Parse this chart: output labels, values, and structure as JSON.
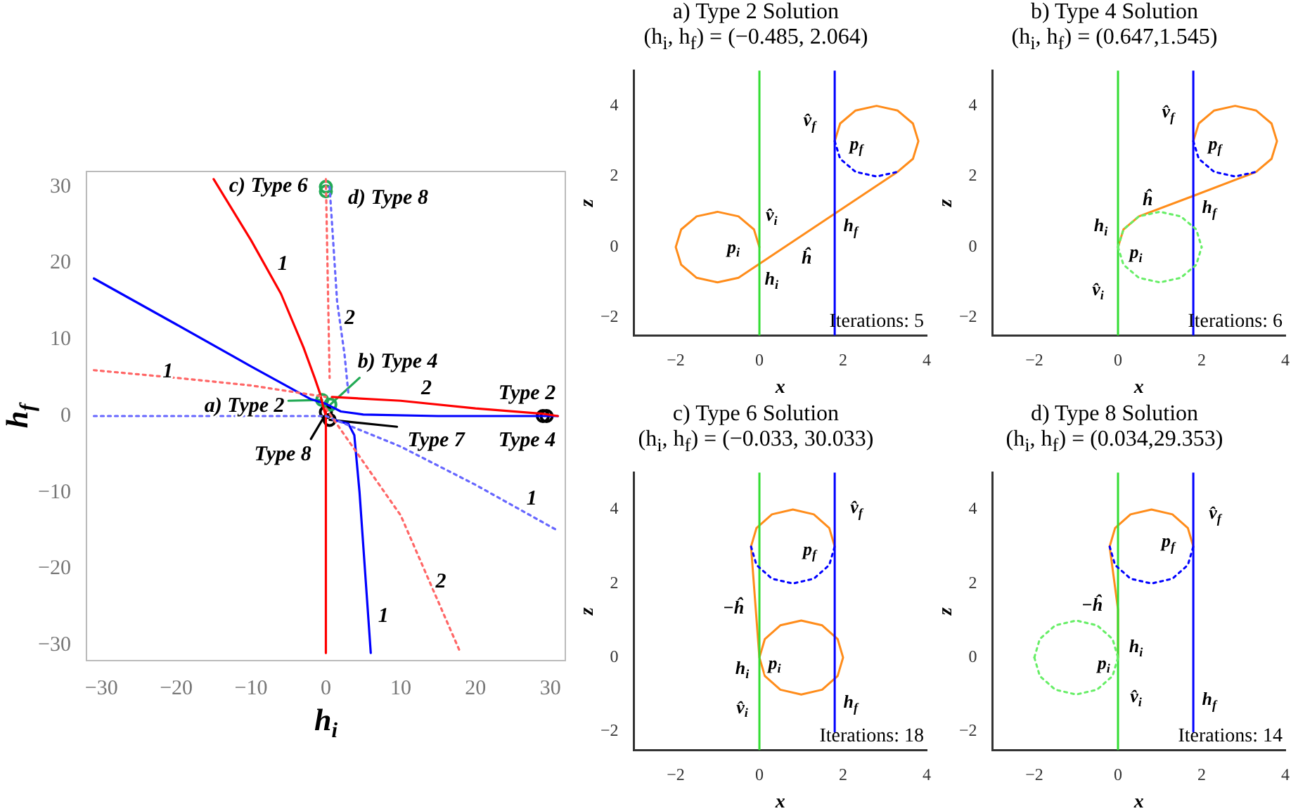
{
  "chart_data": [
    {
      "type": "line",
      "xlabel": "h$_{i}$",
      "ylabel": "h$_{f}$",
      "xlim": [
        -32,
        32
      ],
      "ylim": [
        -32,
        32
      ],
      "xticks": [
        -30,
        -20,
        -10,
        0,
        10,
        20,
        30
      ],
      "yticks": [
        -30,
        -20,
        -10,
        0,
        10,
        20,
        30
      ],
      "grid": false,
      "legend": false,
      "series": [
        {
          "color": "#ff0000",
          "line_style": "solid",
          "x": [
            -15,
            -10,
            -6,
            -3,
            -1.5,
            -0.8,
            -0.3,
            0
          ],
          "values": [
            31,
            23,
            16,
            9,
            5,
            3,
            1,
            0
          ]
        },
        {
          "color": "#ff0000",
          "line_style": "solid",
          "x": [
            0,
            0
          ],
          "values": [
            1,
            -31
          ]
        },
        {
          "color": "#ff0000",
          "line_style": "solid",
          "x": [
            0.8,
            10,
            20,
            29,
            31
          ],
          "values": [
            2.5,
            2,
            1,
            0.3,
            0
          ]
        },
        {
          "color": "#0000ff",
          "line_style": "solid",
          "x": [
            -31,
            -20,
            -10,
            -2,
            0,
            2,
            5,
            15,
            31
          ],
          "values": [
            18,
            12,
            6.5,
            2.2,
            1.6,
            0.6,
            0.2,
            0,
            0
          ]
        },
        {
          "color": "#0000ff",
          "line_style": "solid",
          "x": [
            1,
            3,
            3.8,
            4.5,
            5.5,
            6
          ],
          "values": [
            -0.5,
            -1,
            -2.5,
            -10,
            -24,
            -31
          ]
        },
        {
          "color": "#ff6666",
          "line_style": "dotted",
          "x": [
            -31,
            -20,
            -10,
            0
          ],
          "values": [
            6,
            5,
            4,
            2.5
          ]
        },
        {
          "color": "#ff6666",
          "line_style": "dotted",
          "x": [
            0,
            5,
            10,
            14,
            18
          ],
          "values": [
            1,
            -6,
            -13,
            -22,
            -31
          ]
        },
        {
          "color": "#ff6666",
          "line_style": "dotted",
          "x": [
            0,
            0.5
          ],
          "values": [
            31,
            5
          ]
        },
        {
          "color": "#6666ff",
          "line_style": "dotted",
          "x": [
            0,
            10,
            20,
            31
          ],
          "values": [
            0,
            -4,
            -9,
            -15
          ]
        },
        {
          "color": "#6666ff",
          "line_style": "dotted",
          "x": [
            -31,
            0
          ],
          "values": [
            0,
            0
          ]
        },
        {
          "color": "#6666ff",
          "line_style": "dotted",
          "x": [
            0.5,
            1.5,
            2.5,
            3
          ],
          "values": [
            30,
            15,
            8,
            3
          ]
        },
        {
          "color": "#22aa55",
          "line_style": "solid",
          "x": [
            -0.5,
            -5
          ],
          "values": [
            2.1,
            2
          ]
        },
        {
          "color": "#22aa55",
          "line_style": "solid",
          "x": [
            0.6,
            4.5
          ],
          "values": [
            1.5,
            5
          ]
        },
        {
          "color": "#000000",
          "line_style": "solid",
          "x": [
            0,
            -2
          ],
          "values": [
            0.3,
            -3
          ]
        },
        {
          "color": "#000000",
          "line_style": "solid",
          "x": [
            0.5,
            9.5
          ],
          "values": [
            -0.5,
            -1.4
          ]
        },
        {
          "type": "scatter",
          "color": "#22aa55",
          "marker": "circle",
          "x": [
            -0.5,
            0.6,
            0,
            0
          ],
          "values": [
            2.1,
            1.5,
            30,
            29.4
          ]
        },
        {
          "type": "scatter",
          "color": "#000000",
          "marker": "circle",
          "x": [
            0,
            0.5,
            29,
            29.5
          ],
          "values": [
            0.5,
            -0.5,
            0,
            0
          ]
        }
      ],
      "annotations": [
        "c) Type 6",
        "d) Type 8",
        "b) Type 4",
        "a) Type 2",
        "Type 2",
        "Type 4",
        "Type 7",
        "Type 8",
        "1",
        "1",
        "2",
        "2",
        "1",
        "2",
        "1"
      ]
    },
    {
      "type": "line",
      "title": "a) Type 2 Solution",
      "subtitle": "(h$_{i}$, h$_{f}$) = (−0.485, 2.064)",
      "xlabel": "x",
      "ylabel": "z",
      "xlim": [
        -3,
        4
      ],
      "ylim": [
        -2.5,
        5
      ],
      "xticks": [
        -2,
        0,
        2,
        4
      ],
      "yticks": [
        -2,
        0,
        2,
        4
      ],
      "grid": false,
      "legend": false,
      "series": [
        {
          "color": "#33dd33",
          "line_style": "solid",
          "x": [
            0,
            0
          ],
          "values": [
            -2.5,
            5
          ]
        },
        {
          "color": "#0000ff",
          "line_style": "solid",
          "x": [
            1.8,
            1.8
          ],
          "values": [
            -2.5,
            5
          ]
        },
        {
          "color": "#ff8c1a",
          "line_style": "solid",
          "x": [
            0,
            -0.13,
            -0.5,
            -1,
            -1.5,
            -1.87,
            -2,
            -1.87,
            -1.5,
            -1,
            -0.5,
            3.3,
            3.67,
            3.8,
            3.67,
            3.3,
            2.8,
            2.3,
            1.93,
            1.8
          ],
          "values": [
            0,
            0.5,
            0.87,
            1,
            0.87,
            0.5,
            0,
            -0.5,
            -0.87,
            -1,
            -0.87,
            2.13,
            2.5,
            3,
            3.5,
            3.87,
            4,
            3.87,
            3.5,
            3
          ]
        },
        {
          "color": "#0000ff",
          "line_style": "dotted",
          "x": [
            1.8,
            1.93,
            2.3,
            2.8,
            3.3
          ],
          "values": [
            3,
            2.5,
            2.13,
            2,
            2.13
          ]
        }
      ],
      "annotations": [
        "v̂$_{f}$",
        "p$_{f}$",
        "v̂$_{i}$",
        "p$_{i}$",
        "ĥ",
        "h$_{i}$",
        "h$_{f}$",
        "Iterations: 5"
      ]
    },
    {
      "type": "line",
      "title": "b) Type 4 Solution",
      "subtitle": "(h$_{i}$, h$_{f}$) = (0.647,1.545)",
      "xlabel": "x",
      "ylabel": "z",
      "xlim": [
        -3,
        4
      ],
      "ylim": [
        -2.5,
        5
      ],
      "xticks": [
        -2,
        0,
        2,
        4
      ],
      "yticks": [
        -2,
        0,
        2,
        4
      ],
      "grid": false,
      "legend": false,
      "series": [
        {
          "color": "#33dd33",
          "line_style": "solid",
          "x": [
            0,
            0
          ],
          "values": [
            -2.5,
            5
          ]
        },
        {
          "color": "#0000ff",
          "line_style": "solid",
          "x": [
            1.8,
            1.8
          ],
          "values": [
            -2.5,
            5
          ]
        },
        {
          "color": "#ff8c1a",
          "line_style": "solid",
          "x": [
            0,
            0.13,
            0.5,
            1.8,
            3.3,
            3.67,
            3.8,
            3.67,
            3.3,
            2.8,
            2.3,
            1.93,
            1.8
          ],
          "values": [
            0,
            0.5,
            0.87,
            1.45,
            2.13,
            2.5,
            3,
            3.5,
            3.87,
            4,
            3.87,
            3.5,
            3
          ]
        },
        {
          "color": "#0000ff",
          "line_style": "dotted",
          "x": [
            1.8,
            1.93,
            2.3,
            2.8,
            3.3
          ],
          "values": [
            3,
            2.5,
            2.13,
            2,
            2.13
          ]
        },
        {
          "color": "#66ee66",
          "line_style": "dotted",
          "x": [
            0,
            0.13,
            0.5,
            1,
            1.5,
            1.87,
            2
          ],
          "values": [
            0,
            0.5,
            0.87,
            1,
            0.87,
            0.5,
            0
          ]
        },
        {
          "color": "#66ee66",
          "line_style": "dotted",
          "x": [
            0,
            0.13,
            0.5,
            1,
            1.5,
            1.87,
            2
          ],
          "values": [
            0,
            -0.5,
            -0.87,
            -1,
            -0.87,
            -0.5,
            0
          ]
        }
      ],
      "annotations": [
        "v̂$_{f}$",
        "p$_{f}$",
        "h$_{i}$",
        "p$_{i}$",
        "ĥ",
        "v̂$_{i}$",
        "h$_{f}$",
        "Iterations: 6"
      ]
    },
    {
      "type": "line",
      "title": "c) Type 6 Solution",
      "subtitle": "(h$_{i}$, h$_{f}$) = (−0.033, 30.033)",
      "xlabel": "x",
      "ylabel": "z",
      "xlim": [
        -3,
        4
      ],
      "ylim": [
        -2.5,
        5
      ],
      "xticks": [
        -2,
        0,
        2,
        4
      ],
      "yticks": [
        -2,
        0,
        2,
        4
      ],
      "grid": false,
      "legend": false,
      "series": [
        {
          "color": "#33dd33",
          "line_style": "solid",
          "x": [
            0,
            0
          ],
          "values": [
            -2.5,
            5
          ]
        },
        {
          "color": "#0000ff",
          "line_style": "solid",
          "x": [
            1.8,
            1.8
          ],
          "values": [
            -2,
            5
          ]
        },
        {
          "color": "#ff8c1a",
          "line_style": "solid",
          "x": [
            0,
            0.13,
            0.5,
            1,
            1.5,
            1.87,
            2,
            1.87,
            1.5,
            1,
            0.5,
            0.13,
            0,
            -0.2,
            -0.07,
            0.3,
            0.8,
            1.3,
            1.67,
            1.8
          ],
          "values": [
            0,
            0.5,
            0.87,
            1,
            0.87,
            0.5,
            0,
            -0.5,
            -0.87,
            -1,
            -0.87,
            -0.5,
            0,
            3,
            3.5,
            3.87,
            4,
            3.87,
            3.5,
            3
          ]
        },
        {
          "color": "#0000ff",
          "line_style": "dotted",
          "x": [
            -0.2,
            -0.07,
            0.3,
            0.8,
            1.3,
            1.67,
            1.8
          ],
          "values": [
            3,
            2.5,
            2.13,
            2,
            2.13,
            2.5,
            3
          ]
        }
      ],
      "annotations": [
        "v̂$_{f}$",
        "p$_{f}$",
        "−ĥ",
        "p$_{i}$",
        "h$_{i}$",
        "v̂$_{i}$",
        "h$_{f}$",
        "Iterations: 18"
      ]
    },
    {
      "type": "line",
      "title": "d) Type 8 Solution",
      "subtitle": "(h$_{i}$, h$_{f}$) = (0.034,29.353)",
      "xlabel": "x",
      "ylabel": "z",
      "xlim": [
        -3,
        4
      ],
      "ylim": [
        -2.5,
        5
      ],
      "xticks": [
        -2,
        0,
        2,
        4
      ],
      "yticks": [
        -2,
        0,
        2,
        4
      ],
      "grid": false,
      "legend": false,
      "series": [
        {
          "color": "#33dd33",
          "line_style": "solid",
          "x": [
            0,
            0
          ],
          "values": [
            -2.5,
            5
          ]
        },
        {
          "color": "#0000ff",
          "line_style": "solid",
          "x": [
            1.8,
            1.8
          ],
          "values": [
            -2,
            5
          ]
        },
        {
          "color": "#ff8c1a",
          "line_style": "solid",
          "x": [
            0,
            0,
            -0.2,
            -0.07,
            0.3,
            0.8,
            1.3,
            1.67,
            1.8
          ],
          "values": [
            0,
            1.3,
            3,
            3.5,
            3.87,
            4,
            3.87,
            3.5,
            3
          ]
        },
        {
          "color": "#0000ff",
          "line_style": "dotted",
          "x": [
            -0.2,
            -0.07,
            0.3,
            0.8,
            1.3,
            1.67,
            1.8
          ],
          "values": [
            3,
            2.5,
            2.13,
            2,
            2.13,
            2.5,
            3
          ]
        },
        {
          "color": "#66ee66",
          "line_style": "dotted",
          "x": [
            -2,
            -1.87,
            -1.5,
            -1,
            -0.5,
            -0.13,
            0
          ],
          "values": [
            0,
            0.5,
            0.87,
            1,
            0.87,
            0.5,
            0
          ]
        },
        {
          "color": "#66ee66",
          "line_style": "dotted",
          "x": [
            -2,
            -1.87,
            -1.5,
            -1,
            -0.5,
            -0.13,
            0
          ],
          "values": [
            0,
            -0.5,
            -0.87,
            -1,
            -0.87,
            -0.5,
            0
          ]
        }
      ],
      "annotations": [
        "v̂$_{f}$",
        "p$_{f}$",
        "−ĥ",
        "p$_{i}$",
        "h$_{i}$",
        "v̂$_{i}$",
        "h$_{f}$",
        "Iterations: 14"
      ]
    }
  ]
}
